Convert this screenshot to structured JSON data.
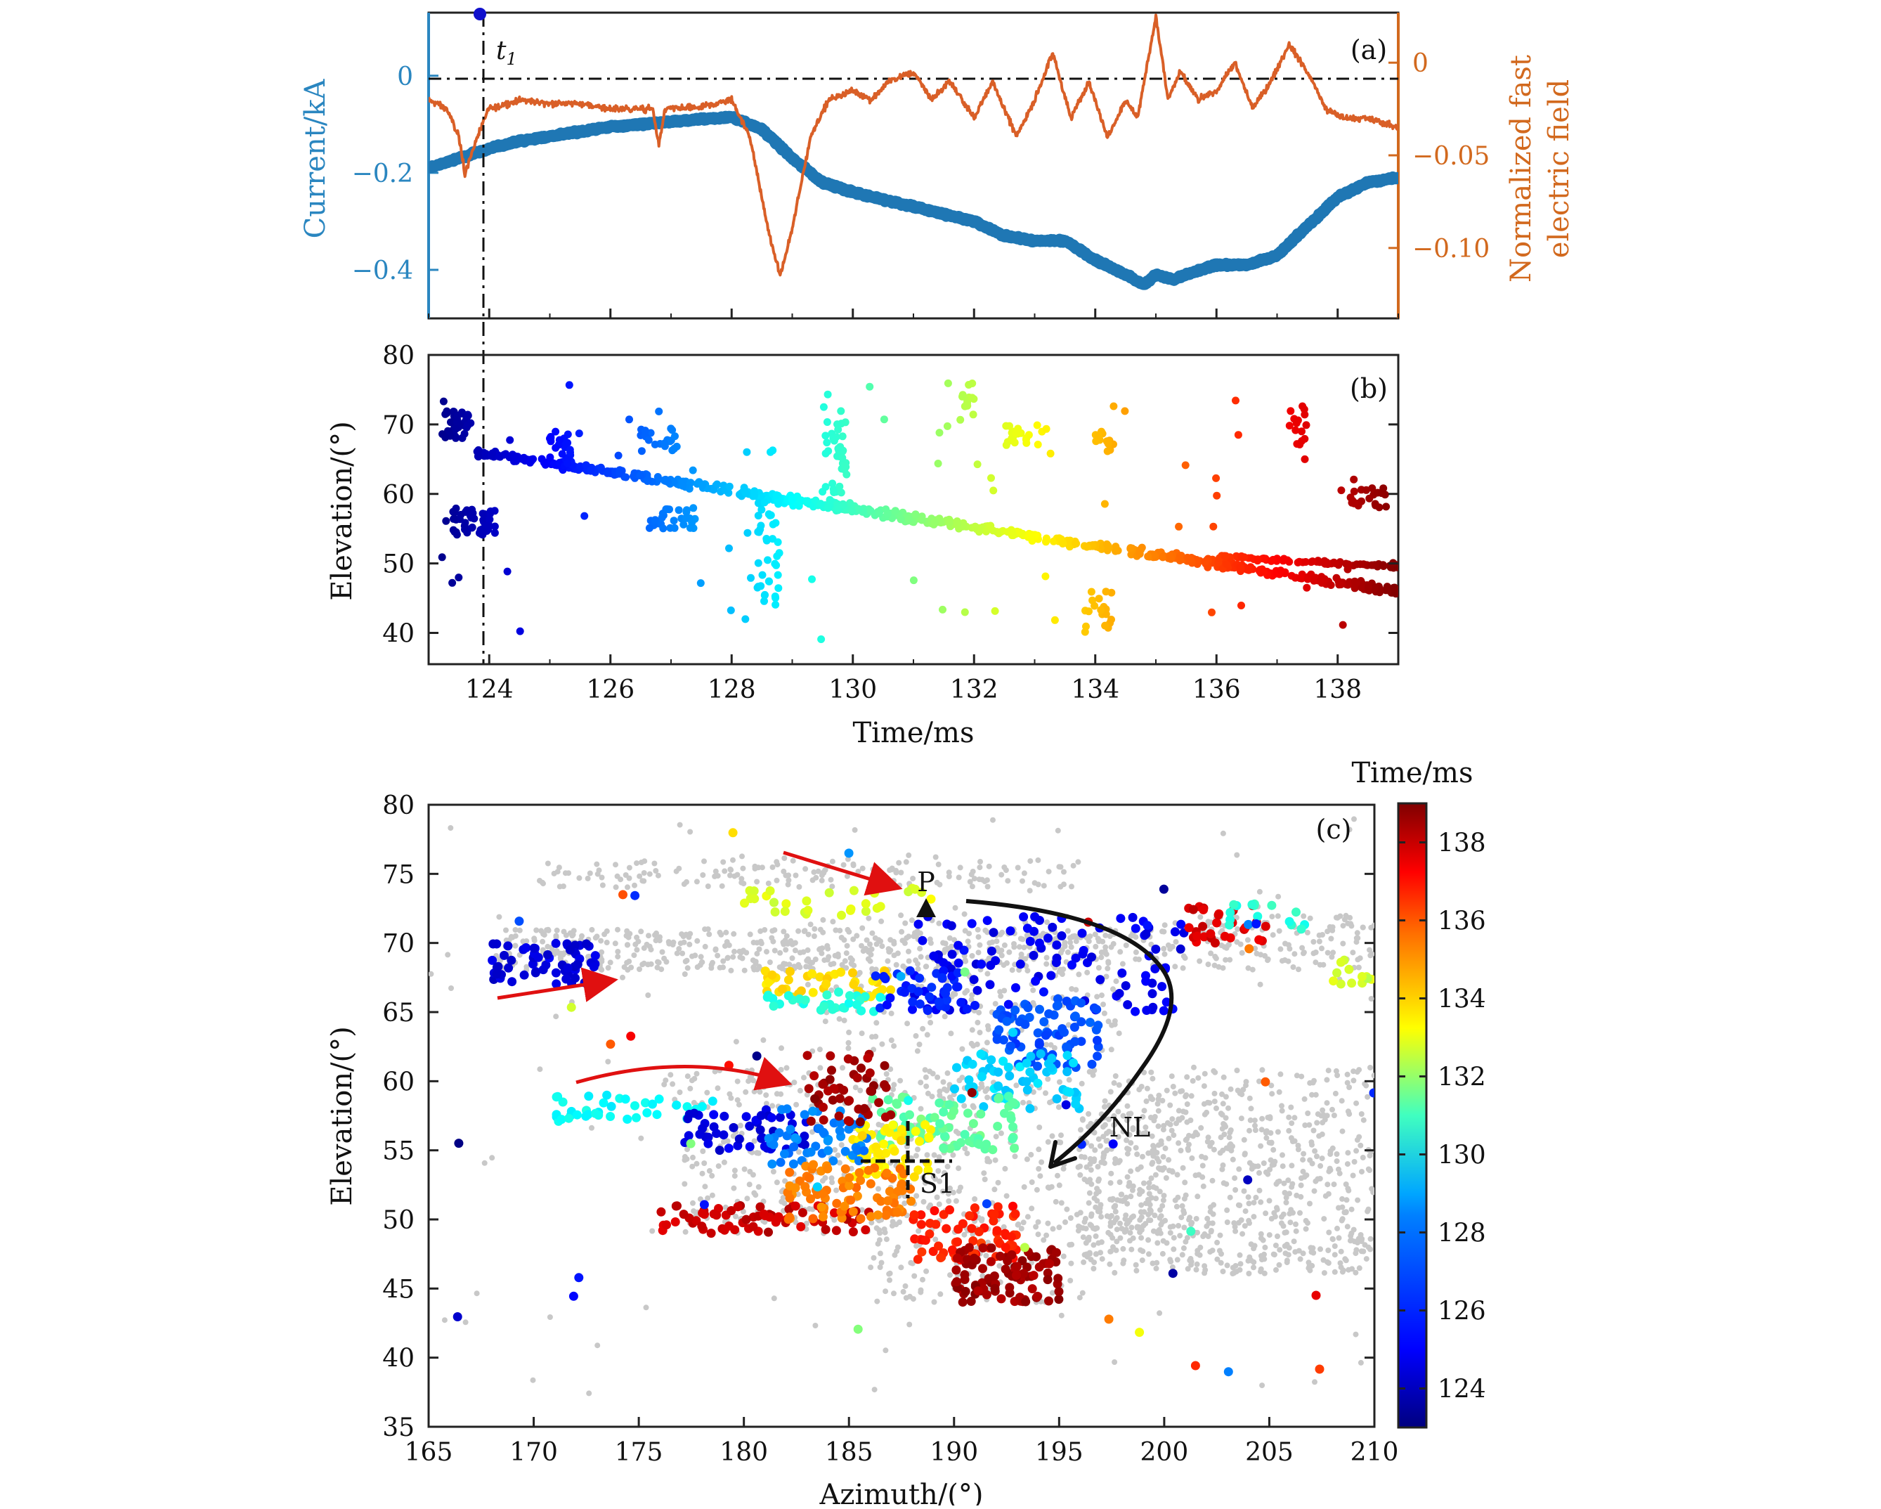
{
  "colors": {
    "current": "#1f77b4",
    "efield": "#d95f27",
    "axis_current": "#2a86c0",
    "axis_efield": "#d2691e",
    "bg_points": "#c8c8c8",
    "arrow_red": "#e01010"
  },
  "chart_data": [
    {
      "panel": "(a)",
      "type": "line",
      "xlim": [
        123,
        139
      ],
      "ylabel_left": "Current/kA",
      "ylim_left": [
        -0.5,
        0.13
      ],
      "yticks_left": [
        0,
        -0.2,
        -0.4
      ],
      "ytick_labels_left": [
        "0",
        "−0.2",
        "−0.4"
      ],
      "ylabel_right": "Normalized fast electric field",
      "ylabel_right_lines": [
        "Normalized fast",
        "electric field"
      ],
      "ylim_right": [
        -0.138,
        0.027
      ],
      "yticks_right": [
        0,
        -0.05,
        -0.1
      ],
      "ytick_labels_right": [
        "0",
        "−0.05",
        "−0.10"
      ],
      "annotation": "t",
      "annotation_sub": "1",
      "t1": 123.85,
      "grid": false,
      "series": [
        {
          "axis": "left",
          "x": [
            123.0,
            123.5,
            124.0,
            124.5,
            125.0,
            126.0,
            127.0,
            128.0,
            128.5,
            129.0,
            129.5,
            130.0,
            131.0,
            132.0,
            132.5,
            133.0,
            133.5,
            134.0,
            134.5,
            134.8,
            135.0,
            135.3,
            135.5,
            136.0,
            136.5,
            137.0,
            137.5,
            138.0,
            138.5,
            139.0
          ],
          "values": [
            -0.19,
            -0.17,
            -0.15,
            -0.135,
            -0.125,
            -0.105,
            -0.095,
            -0.085,
            -0.11,
            -0.17,
            -0.22,
            -0.24,
            -0.27,
            -0.3,
            -0.33,
            -0.34,
            -0.34,
            -0.38,
            -0.41,
            -0.43,
            -0.41,
            -0.42,
            -0.41,
            -0.39,
            -0.39,
            -0.37,
            -0.31,
            -0.25,
            -0.22,
            -0.21
          ]
        },
        {
          "axis": "right",
          "x": [
            123.0,
            123.3,
            123.5,
            123.6,
            123.8,
            124.0,
            124.5,
            125.0,
            125.5,
            126.0,
            126.7,
            126.8,
            126.9,
            127.5,
            128.0,
            128.3,
            128.6,
            128.8,
            129.0,
            129.3,
            129.6,
            130.0,
            130.3,
            130.6,
            131.0,
            131.3,
            131.6,
            132.0,
            132.3,
            132.7,
            133.0,
            133.3,
            133.6,
            133.9,
            134.2,
            134.5,
            134.7,
            135.0,
            135.2,
            135.4,
            135.7,
            136.0,
            136.3,
            136.6,
            136.9,
            137.2,
            137.5,
            137.8,
            138.1,
            138.5,
            139.0
          ],
          "values": [
            -0.02,
            -0.025,
            -0.04,
            -0.06,
            -0.04,
            -0.025,
            -0.02,
            -0.022,
            -0.022,
            -0.025,
            -0.025,
            -0.045,
            -0.025,
            -0.024,
            -0.02,
            -0.04,
            -0.09,
            -0.115,
            -0.09,
            -0.04,
            -0.02,
            -0.015,
            -0.02,
            -0.01,
            -0.005,
            -0.02,
            -0.01,
            -0.03,
            -0.01,
            -0.04,
            -0.02,
            0.005,
            -0.03,
            -0.01,
            -0.04,
            -0.02,
            -0.03,
            0.025,
            -0.02,
            -0.005,
            -0.02,
            -0.015,
            0.0,
            -0.025,
            -0.01,
            0.01,
            -0.005,
            -0.025,
            -0.03,
            -0.03,
            -0.035
          ]
        }
      ]
    },
    {
      "panel": "(b)",
      "type": "scatter",
      "xlabel": "Time/ms",
      "ylabel": "Elevation/(°)",
      "xlim": [
        123,
        139
      ],
      "ylim": [
        35.5,
        80
      ],
      "xticks": [
        124,
        126,
        128,
        130,
        132,
        134,
        136,
        138
      ],
      "yticks": [
        40,
        50,
        60,
        70,
        80
      ],
      "grid": false,
      "clusters": [
        {
          "t": [
            123.2,
            123.7
          ],
          "el": [
            68,
            72
          ],
          "n": 40
        },
        {
          "t": [
            123.4,
            124.1
          ],
          "el": [
            54,
            58
          ],
          "n": 45
        },
        {
          "t": [
            125.0,
            125.4
          ],
          "el": [
            64,
            69
          ],
          "n": 25
        },
        {
          "t": [
            126.5,
            127.1
          ],
          "el": [
            66,
            70
          ],
          "n": 20
        },
        {
          "t": [
            126.6,
            127.4
          ],
          "el": [
            55,
            58
          ],
          "n": 30
        },
        {
          "t": [
            128.4,
            128.8
          ],
          "el": [
            44,
            60
          ],
          "n": 45
        },
        {
          "t": [
            129.5,
            129.9
          ],
          "el": [
            60,
            74
          ],
          "n": 40
        },
        {
          "t": [
            131.8,
            132.0
          ],
          "el": [
            71,
            77
          ],
          "n": 12
        },
        {
          "t": [
            132.5,
            133.1
          ],
          "el": [
            67,
            70
          ],
          "n": 20
        },
        {
          "t": [
            134.0,
            134.3
          ],
          "el": [
            66,
            69
          ],
          "n": 12
        },
        {
          "t": [
            133.8,
            134.3
          ],
          "el": [
            40,
            46
          ],
          "n": 20
        },
        {
          "t": [
            137.2,
            137.5
          ],
          "el": [
            67,
            73
          ],
          "n": 15
        },
        {
          "t": [
            138.2,
            138.8
          ],
          "el": [
            58,
            61
          ],
          "n": 22
        }
      ],
      "main_trend": {
        "t": [
          123.8,
          139.0
        ],
        "el_start": 66,
        "el_end": 46,
        "n": 700
      },
      "branch_upper": {
        "t": [
          136.0,
          139.0
        ],
        "el": [
          51,
          49.5
        ],
        "n": 80
      }
    },
    {
      "panel": "(c)",
      "type": "scatter",
      "xlabel": "Azimuth/(°)",
      "ylabel": "Elevation/(°)",
      "xlim": [
        165,
        210
      ],
      "ylim": [
        35,
        80
      ],
      "xticks": [
        165,
        170,
        175,
        180,
        185,
        190,
        195,
        200,
        205,
        210
      ],
      "yticks": [
        35,
        40,
        45,
        50,
        55,
        60,
        65,
        70,
        75,
        80
      ],
      "colorbar_label": "Time/ms",
      "colorbar_range": [
        123,
        139
      ],
      "colorbar_ticks": [
        124,
        126,
        128,
        130,
        132,
        134,
        136,
        138
      ],
      "annotations": [
        {
          "text": "P",
          "az": 189.2,
          "el": 72.3
        },
        {
          "text": "S1",
          "az": 188.0,
          "el": 54.0
        },
        {
          "text": "NL",
          "az": 198.5,
          "el": 56.5
        }
      ],
      "colored_clusters": [
        {
          "az": [
            168,
            173
          ],
          "el": [
            67,
            70
          ],
          "t": 124.5,
          "n": 60
        },
        {
          "az": [
            178,
            189
          ],
          "el": [
            72,
            74
          ],
          "t": 132.5,
          "n": 30
        },
        {
          "az": [
            181,
            187
          ],
          "el": [
            66,
            68
          ],
          "t": 133.5,
          "n": 45
        },
        {
          "az": [
            181,
            187
          ],
          "el": [
            65,
            66.5
          ],
          "t": 129.5,
          "n": 30
        },
        {
          "az": [
            188,
            201
          ],
          "el": [
            65,
            72
          ],
          "t": 124.8,
          "n": 110
        },
        {
          "az": [
            186,
            191
          ],
          "el": [
            65,
            68
          ],
          "t": 125.5,
          "n": 40
        },
        {
          "az": [
            192,
            197
          ],
          "el": [
            61,
            66
          ],
          "t": 126.3,
          "n": 80
        },
        {
          "az": [
            190,
            196
          ],
          "el": [
            58,
            62
          ],
          "t": 128.3,
          "n": 60
        },
        {
          "az": [
            186,
            193
          ],
          "el": [
            55,
            59
          ],
          "t": 130.5,
          "n": 80
        },
        {
          "az": [
            185,
            189
          ],
          "el": [
            53,
            57
          ],
          "t": 133.2,
          "n": 60
        },
        {
          "az": [
            171,
            179
          ],
          "el": [
            57,
            59
          ],
          "t": 129.0,
          "n": 40
        },
        {
          "az": [
            177,
            183
          ],
          "el": [
            55,
            58
          ],
          "t": 124.5,
          "n": 50
        },
        {
          "az": [
            181,
            186
          ],
          "el": [
            54,
            58
          ],
          "t": 127.0,
          "n": 50
        },
        {
          "az": [
            183,
            187
          ],
          "el": [
            57,
            62
          ],
          "t": 138.5,
          "n": 50
        },
        {
          "az": [
            176,
            186
          ],
          "el": [
            49,
            51
          ],
          "t": 137.8,
          "n": 70
        },
        {
          "az": [
            182,
            188
          ],
          "el": [
            50,
            54
          ],
          "t": 135.0,
          "n": 80
        },
        {
          "az": [
            188,
            193
          ],
          "el": [
            47,
            51
          ],
          "t": 136.5,
          "n": 70
        },
        {
          "az": [
            190,
            195
          ],
          "el": [
            44,
            48
          ],
          "t": 138.5,
          "n": 90
        },
        {
          "az": [
            201,
            205
          ],
          "el": [
            70,
            73
          ],
          "t": 137.5,
          "n": 30
        },
        {
          "az": [
            203,
            207
          ],
          "el": [
            71,
            73
          ],
          "t": 129.5,
          "n": 15
        },
        {
          "az": [
            208,
            210
          ],
          "el": [
            67,
            69
          ],
          "t": 132.2,
          "n": 12
        }
      ]
    }
  ]
}
